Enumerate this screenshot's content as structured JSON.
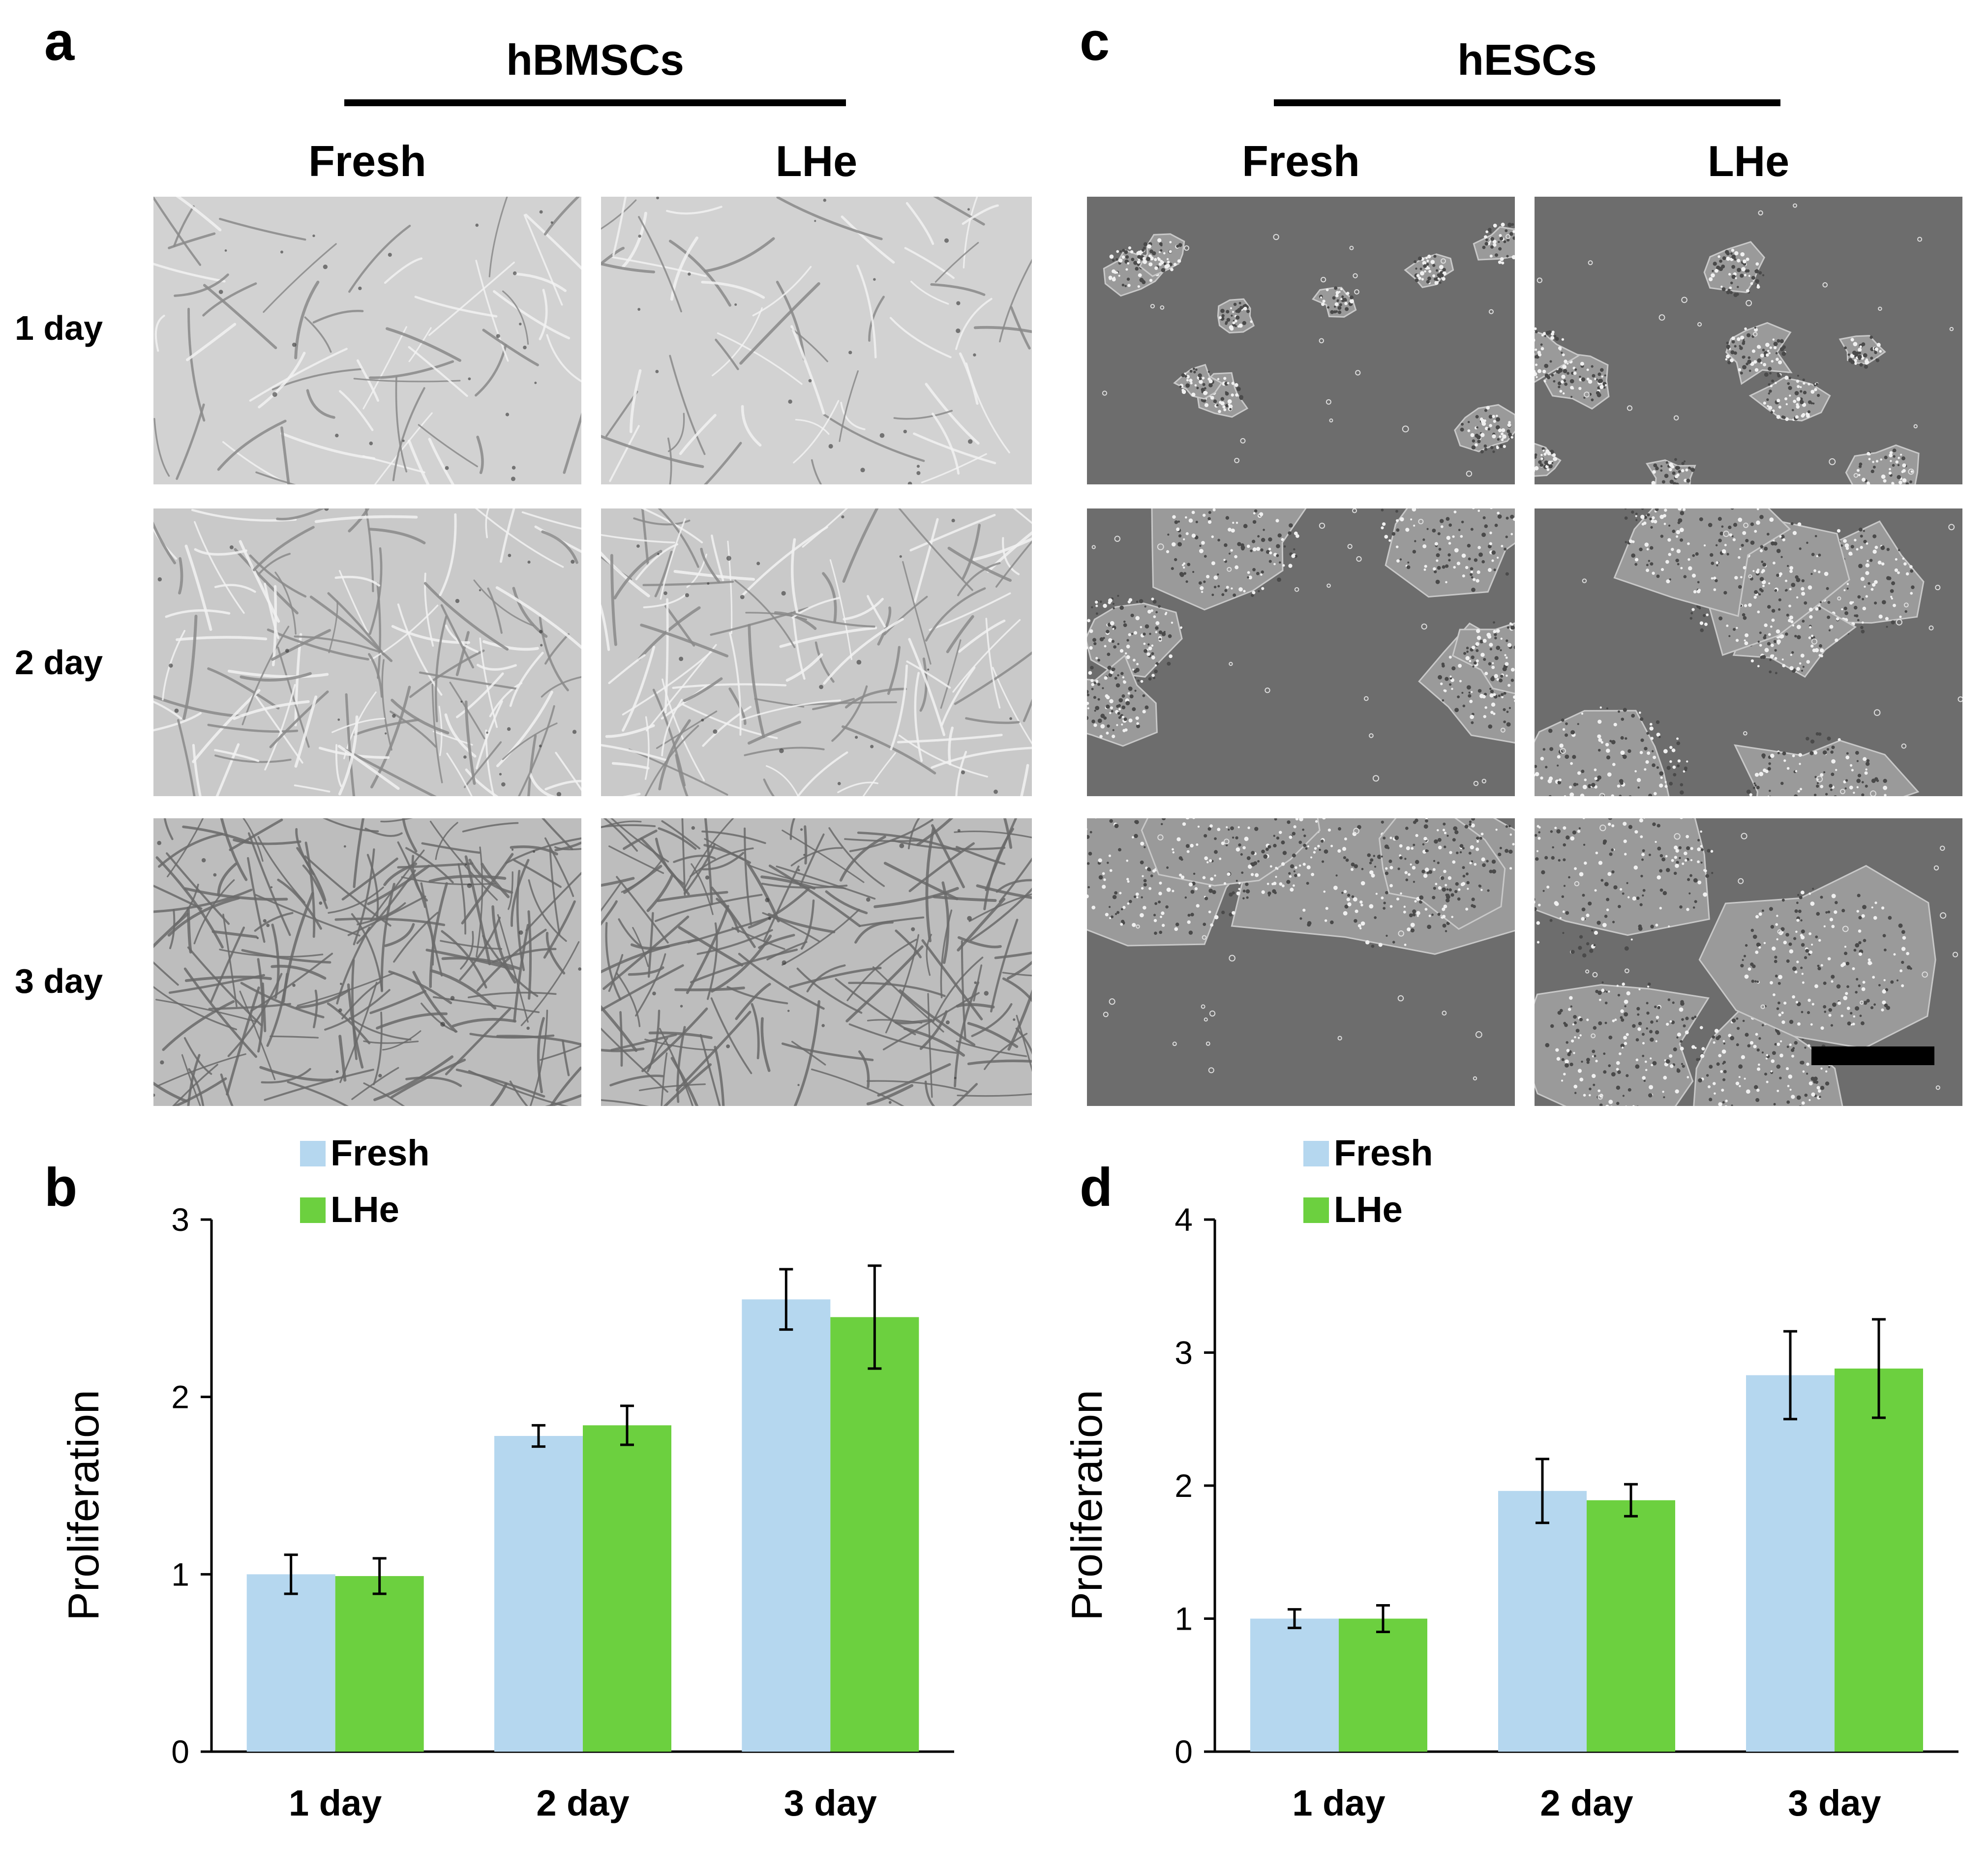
{
  "panels": {
    "a": {
      "letter": "a",
      "group": "hBMSCs",
      "columns": [
        "Fresh",
        "LHe"
      ],
      "rows": [
        "1 day",
        "2 day",
        "3 day"
      ]
    },
    "c": {
      "letter": "c",
      "group": "hESCs",
      "columns": [
        "Fresh",
        "LHe"
      ],
      "rows": []
    },
    "b": {
      "letter": "b"
    },
    "d": {
      "letter": "d"
    }
  },
  "colors": {
    "fresh": "#b5d7ef",
    "lhe": "#6cd03f",
    "bmsc_bg": "#c8c8c8",
    "esc_bg": "#6e6e6e"
  },
  "chart_data": [
    {
      "panel": "b",
      "type": "bar",
      "categories": [
        "1 day",
        "2 day",
        "3 day"
      ],
      "series": [
        {
          "name": "Fresh",
          "values": [
            1.0,
            1.78,
            2.55
          ],
          "errors": [
            0.11,
            0.06,
            0.17
          ]
        },
        {
          "name": "LHe",
          "values": [
            0.99,
            1.84,
            2.45
          ],
          "errors": [
            0.1,
            0.11,
            0.29
          ]
        }
      ],
      "ylabel": "Proliferation",
      "ylim": [
        0,
        3
      ],
      "yticks": [
        0,
        1,
        2,
        3
      ],
      "legend": "top-left",
      "grid": false
    },
    {
      "panel": "d",
      "type": "bar",
      "categories": [
        "1 day",
        "2 day",
        "3 day"
      ],
      "series": [
        {
          "name": "Fresh",
          "values": [
            1.0,
            1.96,
            2.83
          ],
          "errors": [
            0.07,
            0.24,
            0.33
          ]
        },
        {
          "name": "LHe",
          "values": [
            1.0,
            1.89,
            2.88
          ],
          "errors": [
            0.1,
            0.12,
            0.37
          ]
        }
      ],
      "ylabel": "Proliferation",
      "ylim": [
        0,
        4
      ],
      "yticks": [
        0,
        1,
        2,
        3,
        4
      ],
      "legend": "top-left",
      "grid": false
    }
  ]
}
